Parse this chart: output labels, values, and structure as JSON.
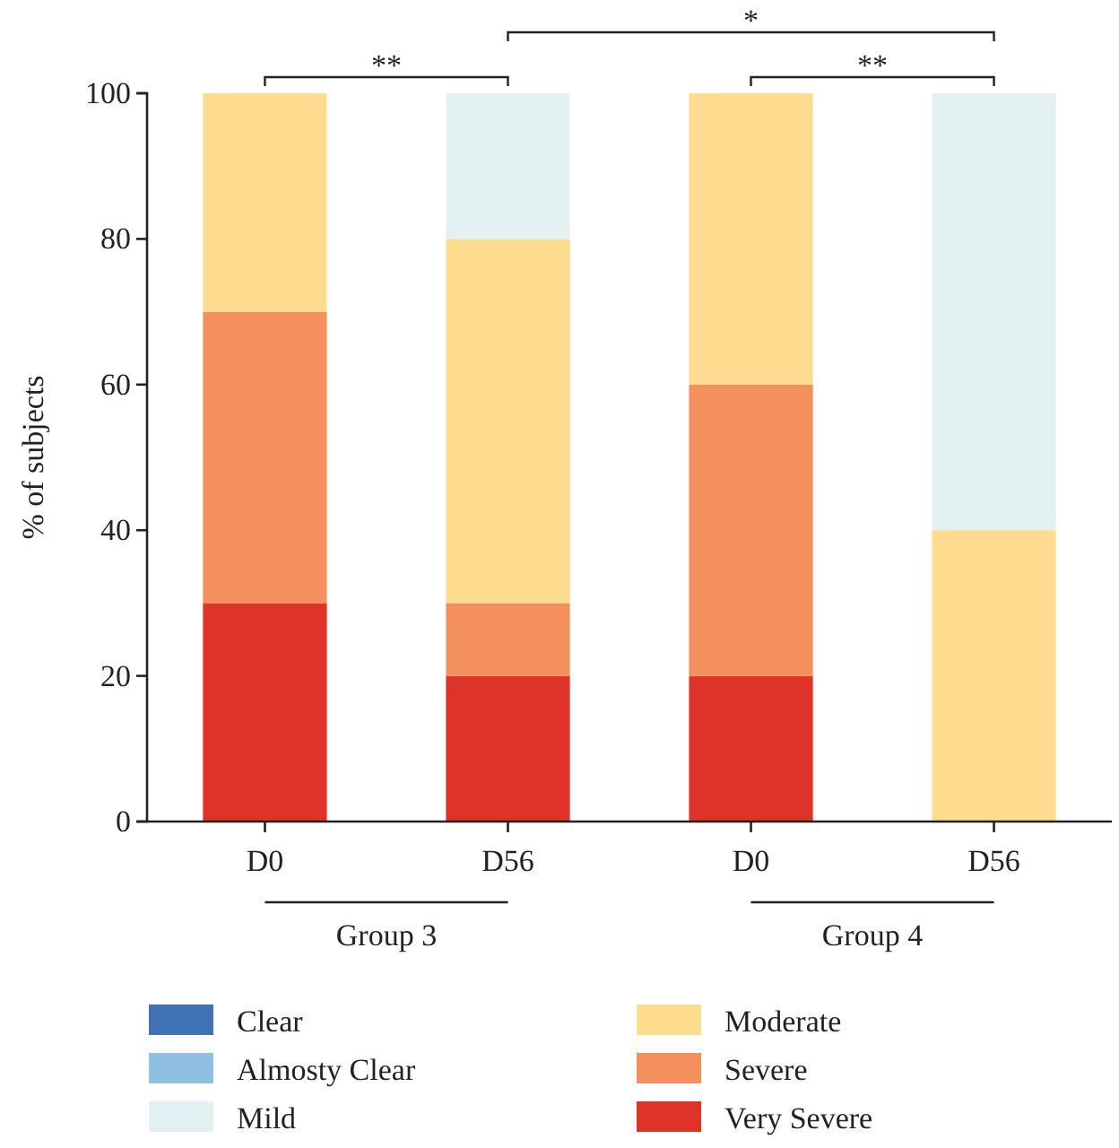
{
  "chart_data": {
    "type": "bar",
    "stacked": true,
    "ylabel": "% of subjects",
    "categories": [
      "D0",
      "D56",
      "D0",
      "D56"
    ],
    "series": [
      {
        "name": "Very Severe",
        "color": "#de3328",
        "values": [
          30,
          20,
          20,
          0
        ]
      },
      {
        "name": "Severe",
        "color": "#f48f5e",
        "values": [
          40,
          10,
          40,
          0
        ]
      },
      {
        "name": "Moderate",
        "color": "#fddc8f",
        "values": [
          30,
          50,
          40,
          40
        ]
      },
      {
        "name": "Mild",
        "color": "#e3f1f3",
        "values": [
          0,
          20,
          0,
          60
        ]
      },
      {
        "name": "Almosty Clear",
        "color": "#8fbfe3",
        "values": [
          0,
          0,
          0,
          0
        ]
      },
      {
        "name": "Clear",
        "color": "#3f72b5",
        "values": [
          0,
          0,
          0,
          0
        ]
      }
    ],
    "ylim": [
      0,
      100
    ],
    "yticks": [
      0,
      20,
      40,
      60,
      80,
      100
    ],
    "grid": false,
    "legend": "bottom",
    "annotations": [
      "Group 3",
      "Group 4",
      "**",
      "*",
      "**"
    ]
  }
}
